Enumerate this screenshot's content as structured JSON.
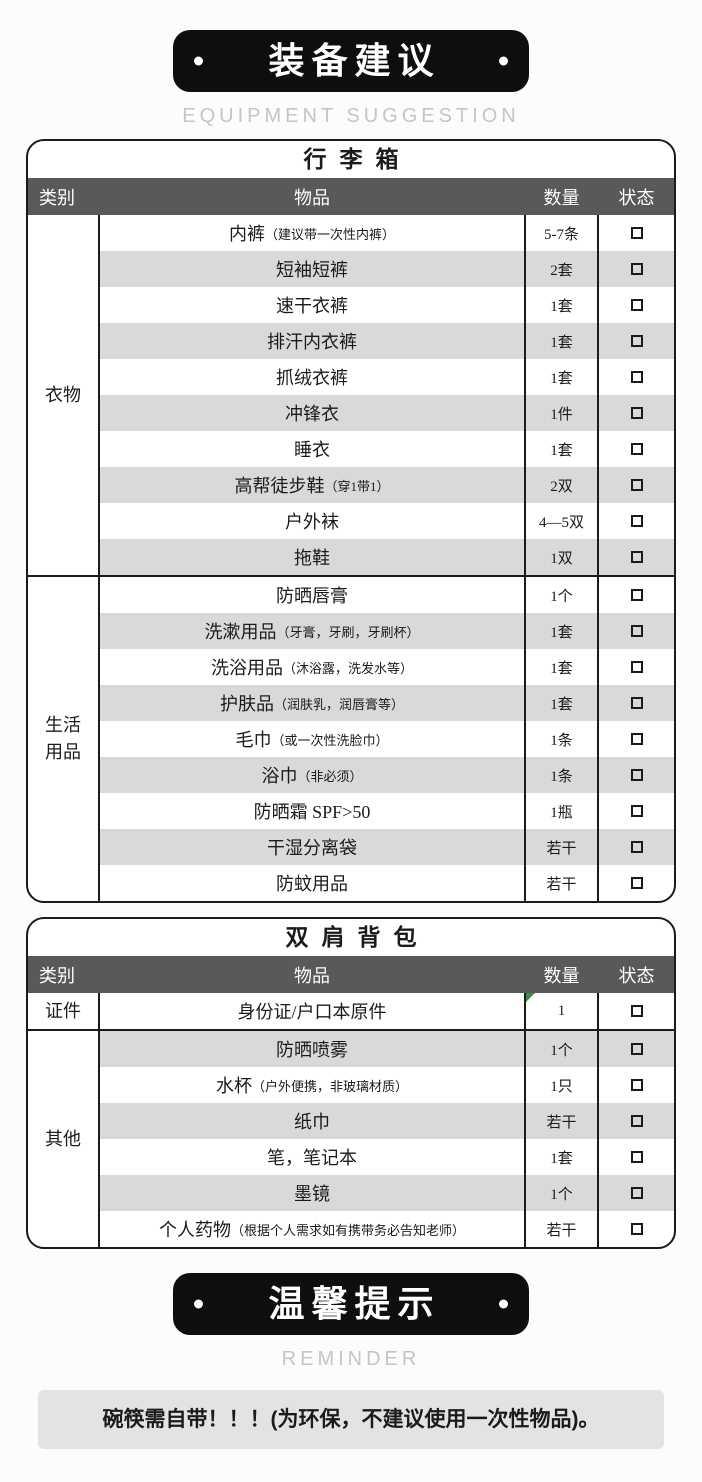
{
  "banners": [
    {
      "title": "装备建议",
      "subtitle": "EQUIPMENT SUGGESTION"
    },
    {
      "title": "温馨提示",
      "subtitle": "REMINDER"
    }
  ],
  "note": {
    "text": "碗筷需自带！！！(为环保，不建议使用一次性物品)。"
  },
  "colors": {
    "banner_bg": "#0e0e0e",
    "banner_text": "#ffffff",
    "subtitle_text": "#c5c5c5",
    "table_border": "#1b1b1b",
    "header_bg": "#58595b",
    "header_text": "#ffffff",
    "row_stripe": "#d9d9d9",
    "note_bg": "#e3e3e3",
    "corner_mark_green": "#3c8d40"
  },
  "tables": [
    {
      "title": "行李箱",
      "columns": {
        "category": "类别",
        "item": "物品",
        "qty": "数量",
        "status": "状态"
      },
      "sections": [
        {
          "category": "衣物",
          "rows": [
            {
              "item": "内裤",
              "note": "（建议带一次性内裤）",
              "qty": "5-7条",
              "checked": false
            },
            {
              "item": "短袖短裤",
              "qty": "2套",
              "checked": false
            },
            {
              "item": "速干衣裤",
              "qty": "1套",
              "checked": false
            },
            {
              "item": "排汗内衣裤",
              "qty": "1套",
              "checked": false
            },
            {
              "item": "抓绒衣裤",
              "qty": "1套",
              "checked": false
            },
            {
              "item": "冲锋衣",
              "qty": "1件",
              "checked": false
            },
            {
              "item": "睡衣",
              "qty": "1套",
              "checked": false
            },
            {
              "item": "高帮徒步鞋",
              "note": "（穿1带1）",
              "qty": "2双",
              "checked": false
            },
            {
              "item": "户外袜",
              "qty": "4—5双",
              "checked": false
            },
            {
              "item": "拖鞋",
              "qty": "1双",
              "checked": false
            }
          ]
        },
        {
          "category": "生活\n用品",
          "rows": [
            {
              "item": "防晒唇膏",
              "qty": "1个",
              "checked": false
            },
            {
              "item": "洗漱用品",
              "note": "（牙膏，牙刷，牙刷杯）",
              "qty": "1套",
              "checked": false
            },
            {
              "item": "洗浴用品",
              "note": "（沐浴露，洗发水等）",
              "qty": "1套",
              "checked": false
            },
            {
              "item": "护肤品",
              "note": "（润肤乳，润唇膏等）",
              "qty": "1套",
              "checked": false
            },
            {
              "item": "毛巾",
              "note": "（或一次性洗脸巾）",
              "qty": "1条",
              "checked": false
            },
            {
              "item": "浴巾",
              "note": "（非必须）",
              "qty": "1条",
              "checked": false
            },
            {
              "item": "防晒霜 SPF>50",
              "qty": "1瓶",
              "checked": false
            },
            {
              "item": "干湿分离袋",
              "qty": "若干",
              "checked": false
            },
            {
              "item": "防蚊用品",
              "qty": "若干",
              "checked": false
            }
          ]
        }
      ]
    },
    {
      "title": "双肩背包",
      "columns": {
        "category": "类别",
        "item": "物品",
        "qty": "数量",
        "status": "状态"
      },
      "sections": [
        {
          "category": "证件",
          "rows": [
            {
              "item": "身份证/户口本原件",
              "qty": "1",
              "corner_mark": true,
              "checked": false
            }
          ]
        },
        {
          "category": "其他",
          "rows": [
            {
              "item": "防晒喷雾",
              "qty": "1个",
              "checked": false
            },
            {
              "item": "水杯",
              "note": "（户外便携，非玻璃材质）",
              "qty": "1只",
              "checked": false
            },
            {
              "item": "纸巾",
              "qty": "若干",
              "checked": false
            },
            {
              "item": "笔，笔记本",
              "qty": "1套",
              "checked": false
            },
            {
              "item": "墨镜",
              "qty": "1个",
              "checked": false
            },
            {
              "item": "个人药物",
              "note": "（根据个人需求如有携带务必告知老师）",
              "qty": "若干",
              "checked": false
            }
          ]
        }
      ]
    }
  ]
}
